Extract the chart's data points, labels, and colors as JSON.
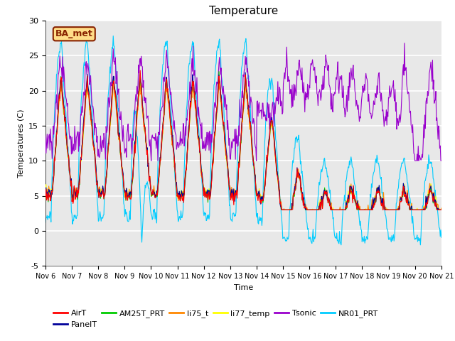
{
  "title": "Temperature",
  "xlabel": "Time",
  "ylabel": "Temperatures (C)",
  "ylim": [
    -5,
    30
  ],
  "xlim": [
    0,
    15
  ],
  "x_tick_labels": [
    "Nov 6",
    "Nov 7",
    "Nov 8",
    "Nov 9",
    "Nov 10",
    "Nov 11",
    "Nov 12",
    "Nov 13",
    "Nov 14",
    "Nov 15",
    "Nov 16",
    "Nov 17",
    "Nov 18",
    "Nov 19",
    "Nov 20",
    "Nov 21"
  ],
  "annotation_text": "BA_met",
  "annotation_box_color": "#FFDD88",
  "annotation_border_color": "#882200",
  "legend_entries": [
    "AirT",
    "PanelT",
    "AM25T_PRT",
    "li75_t",
    "li77_temp",
    "Tsonic",
    "NR01_PRT"
  ],
  "line_colors": {
    "AirT": "#FF0000",
    "PanelT": "#000099",
    "AM25T_PRT": "#00CC00",
    "li75_t": "#FF8800",
    "li77_temp": "#FFFF00",
    "Tsonic": "#9900CC",
    "NR01_PRT": "#00CCFF"
  },
  "plot_bg_color": "#E8E8E8",
  "grid_color": "#FFFFFF",
  "title_fontsize": 11,
  "axis_fontsize": 8,
  "tick_fontsize": 7,
  "legend_fontsize": 8
}
